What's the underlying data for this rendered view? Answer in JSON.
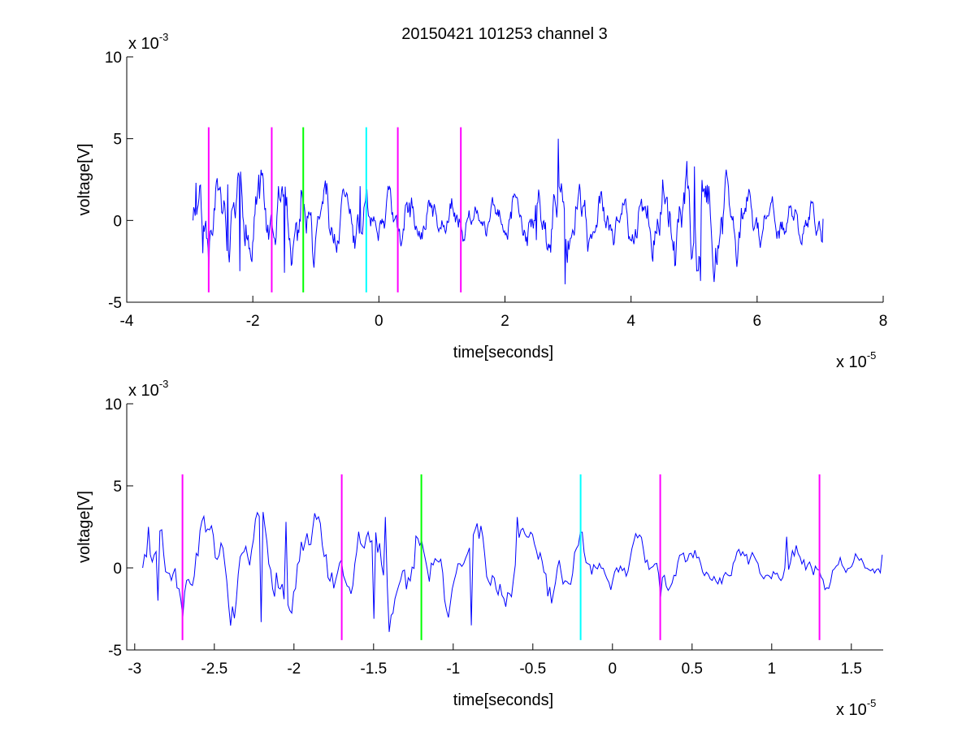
{
  "figure": {
    "title": "20150421 101253 channel 3"
  },
  "chart_data": [
    {
      "type": "line",
      "title": "20150421 101253 channel 3",
      "xlabel": "time[seconds]",
      "ylabel": "voltage[V]",
      "xlim": [
        -4,
        8
      ],
      "ylim": [
        -5,
        10
      ],
      "x_ticks": [
        -4,
        -2,
        0,
        2,
        4,
        6,
        8
      ],
      "x_tick_labels": [
        "-4",
        "-2",
        "0",
        "2",
        "4",
        "6",
        "8"
      ],
      "y_ticks": [
        -5,
        0,
        5,
        10
      ],
      "y_tick_labels": [
        "-5",
        "0",
        "5",
        "10"
      ],
      "x_multiplier": "x 10",
      "x_multiplier_exp": "-5",
      "y_multiplier": "x 10",
      "y_multiplier_exp": "-3",
      "grid": false,
      "series": [
        {
          "color": "#0000ff",
          "x_start": -2.95,
          "x_end": 7.05,
          "seed": 7,
          "envelope": [
            [
              -2.95,
              1.8
            ],
            [
              -2.0,
              2.4
            ],
            [
              -1.0,
              2.2
            ],
            [
              0.0,
              1.5
            ],
            [
              1.0,
              1.1
            ],
            [
              2.0,
              1.2
            ],
            [
              2.5,
              1.8
            ],
            [
              2.85,
              3.0
            ],
            [
              3.2,
              1.8
            ],
            [
              4.0,
              1.3
            ],
            [
              4.5,
              2.2
            ],
            [
              5.0,
              3.0
            ],
            [
              5.5,
              2.5
            ],
            [
              6.0,
              1.4
            ],
            [
              6.5,
              1.0
            ],
            [
              7.05,
              1.2
            ]
          ],
          "sample_points": [
            [
              -2.95,
              0.0
            ],
            [
              -2.9,
              2.3
            ],
            [
              -2.8,
              -2.0
            ],
            [
              -2.7,
              -3.0
            ],
            [
              -2.4,
              2.2
            ],
            [
              -2.2,
              -3.1
            ],
            [
              -1.9,
              2.8
            ],
            [
              -1.5,
              -3.2
            ],
            [
              -1.2,
              0.5
            ],
            [
              -0.3,
              2.1
            ],
            [
              0.5,
              0.2
            ],
            [
              1.0,
              0.0
            ],
            [
              2.5,
              -1.2
            ],
            [
              2.85,
              5.0
            ],
            [
              2.95,
              -3.9
            ],
            [
              4.5,
              2.5
            ],
            [
              5.0,
              3.3
            ],
            [
              5.1,
              -3.7
            ],
            [
              5.5,
              2.7
            ],
            [
              6.0,
              -0.5
            ],
            [
              7.05,
              0.1
            ]
          ]
        }
      ],
      "markers": [
        {
          "x": -2.7,
          "color": "#ff00ff"
        },
        {
          "x": -1.7,
          "color": "#ff00ff"
        },
        {
          "x": -1.2,
          "color": "#00ff00"
        },
        {
          "x": -0.2,
          "color": "#00ffff"
        },
        {
          "x": 0.3,
          "color": "#ff00ff"
        },
        {
          "x": 1.3,
          "color": "#ff00ff"
        }
      ],
      "marker_y_range": [
        -4.4,
        5.7
      ]
    },
    {
      "type": "line",
      "title": "",
      "xlabel": "time[seconds]",
      "ylabel": "voltage[V]",
      "xlim": [
        -3.05,
        1.7
      ],
      "ylim": [
        -5,
        10
      ],
      "x_ticks": [
        -3,
        -2.5,
        -2,
        -1.5,
        -1,
        -0.5,
        0,
        0.5,
        1,
        1.5
      ],
      "x_tick_labels": [
        "-3",
        "-2.5",
        "-2",
        "-1.5",
        "-1",
        "-0.5",
        "0",
        "0.5",
        "1",
        "1.5"
      ],
      "y_ticks": [
        -5,
        0,
        5,
        10
      ],
      "y_tick_labels": [
        "-5",
        "0",
        "5",
        "10"
      ],
      "x_multiplier": "x 10",
      "x_multiplier_exp": "-5",
      "y_multiplier": "x 10",
      "y_multiplier_exp": "-3",
      "grid": false,
      "series": [
        {
          "color": "#0000ff",
          "x_start": -2.95,
          "x_end": 1.7,
          "seed": 7,
          "envelope": [
            [
              -2.95,
              1.8
            ],
            [
              -2.5,
              2.6
            ],
            [
              -2.0,
              2.6
            ],
            [
              -1.5,
              2.4
            ],
            [
              -1.0,
              2.3
            ],
            [
              -0.5,
              2.4
            ],
            [
              0.0,
              1.6
            ],
            [
              0.5,
              1.0
            ],
            [
              1.0,
              1.1
            ],
            [
              1.5,
              1.2
            ],
            [
              1.7,
              1.0
            ]
          ],
          "sample_points": [
            [
              -2.95,
              0.0
            ],
            [
              -2.92,
              2.5
            ],
            [
              -2.85,
              -2.0
            ],
            [
              -2.7,
              -3.0
            ],
            [
              -2.55,
              2.2
            ],
            [
              -2.2,
              -3.3
            ],
            [
              -2.05,
              2.8
            ],
            [
              -1.5,
              -3.1
            ],
            [
              -1.42,
              3.1
            ],
            [
              -1.4,
              -3.9
            ],
            [
              -0.88,
              -3.5
            ],
            [
              -0.6,
              3.1
            ],
            [
              0.3,
              -1.8
            ],
            [
              1.1,
              1.9
            ],
            [
              1.7,
              0.8
            ]
          ]
        }
      ],
      "markers": [
        {
          "x": -2.7,
          "color": "#ff00ff"
        },
        {
          "x": -1.7,
          "color": "#ff00ff"
        },
        {
          "x": -1.2,
          "color": "#00ff00"
        },
        {
          "x": -0.2,
          "color": "#00ffff"
        },
        {
          "x": 0.3,
          "color": "#ff00ff"
        },
        {
          "x": 1.3,
          "color": "#ff00ff"
        }
      ],
      "marker_y_range": [
        -4.4,
        5.7
      ]
    }
  ]
}
